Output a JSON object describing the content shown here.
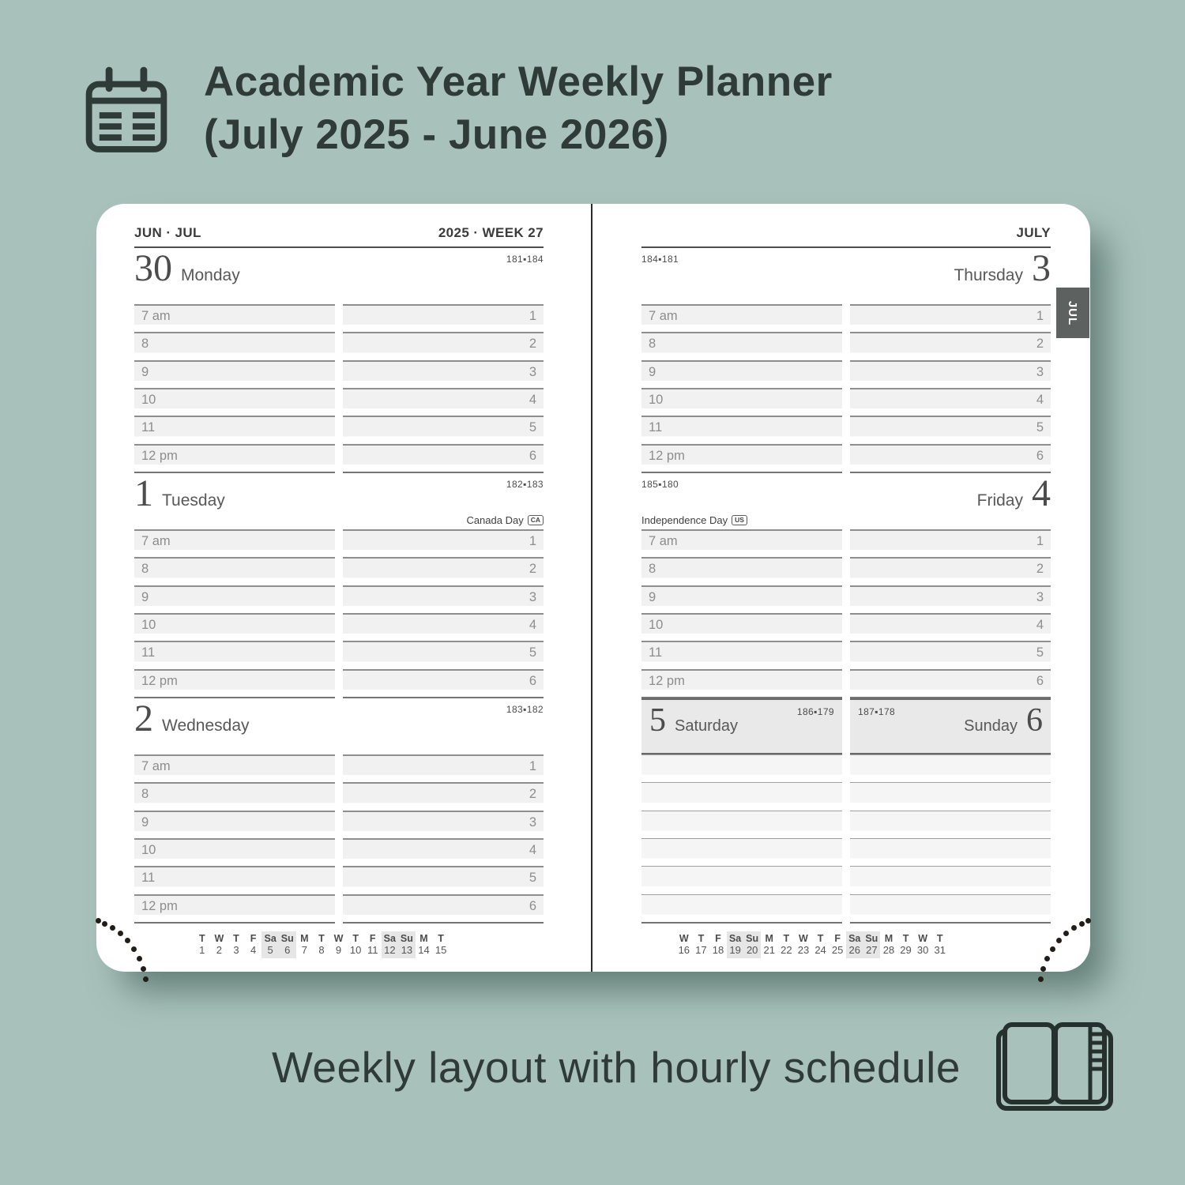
{
  "header": {
    "title_line1": "Academic Year Weekly Planner",
    "title_line2": "(July 2025 - June 2026)"
  },
  "caption": {
    "text": "Weekly layout with hourly schedule"
  },
  "planner": {
    "hour_labels": [
      "7 am",
      "8",
      "9",
      "10",
      "11",
      "12 pm"
    ],
    "slot_numbers": [
      "1",
      "2",
      "3",
      "4",
      "5",
      "6"
    ],
    "left_page": {
      "month_label": "JUN · JUL",
      "week_label": "2025 · WEEK 27",
      "days": [
        {
          "number": "30",
          "name": "Monday",
          "day_count": "181▪184",
          "holiday_label": "",
          "holiday_badge": ""
        },
        {
          "number": "1",
          "name": "Tuesday",
          "day_count": "182▪183",
          "holiday_label": "Canada Day",
          "holiday_badge": "CA"
        },
        {
          "number": "2",
          "name": "Wednesday",
          "day_count": "183▪182",
          "holiday_label": "",
          "holiday_badge": ""
        }
      ],
      "mini_calendar": {
        "day_letters": [
          "T",
          "W",
          "T",
          "F",
          "Sa",
          "Su",
          "M",
          "T",
          "W",
          "T",
          "F",
          "Sa",
          "Su",
          "M",
          "T"
        ],
        "day_numbers": [
          "1",
          "2",
          "3",
          "4",
          "5",
          "6",
          "7",
          "8",
          "9",
          "10",
          "11",
          "12",
          "13",
          "14",
          "15"
        ],
        "weekend_columns": [
          4,
          5,
          11,
          12
        ]
      }
    },
    "right_page": {
      "month_label": "JULY",
      "month_tab": "JUL",
      "days": [
        {
          "number": "3",
          "name": "Thursday",
          "day_count": "184▪181",
          "holiday_label": "",
          "holiday_badge": ""
        },
        {
          "number": "4",
          "name": "Friday",
          "day_count": "185▪180",
          "holiday_label": "Independence Day",
          "holiday_badge": "US"
        }
      ],
      "weekend": {
        "saturday": {
          "number": "5",
          "name": "Saturday",
          "day_count": "186▪179"
        },
        "sunday": {
          "number": "6",
          "name": "Sunday",
          "day_count": "187▪178"
        }
      },
      "mini_calendar": {
        "day_letters": [
          "W",
          "T",
          "F",
          "Sa",
          "Su",
          "M",
          "T",
          "W",
          "T",
          "F",
          "Sa",
          "Su",
          "M",
          "T",
          "W",
          "T"
        ],
        "day_numbers": [
          "16",
          "17",
          "18",
          "19",
          "20",
          "21",
          "22",
          "23",
          "24",
          "25",
          "26",
          "27",
          "28",
          "29",
          "30",
          "31"
        ],
        "weekend_columns": [
          3,
          4,
          10,
          11
        ]
      }
    }
  },
  "colors": {
    "background": "#a8c2bb",
    "ink": "#2e3b37",
    "tab_background": "#5d615f",
    "weekend_fill": "#e9e9e9"
  }
}
